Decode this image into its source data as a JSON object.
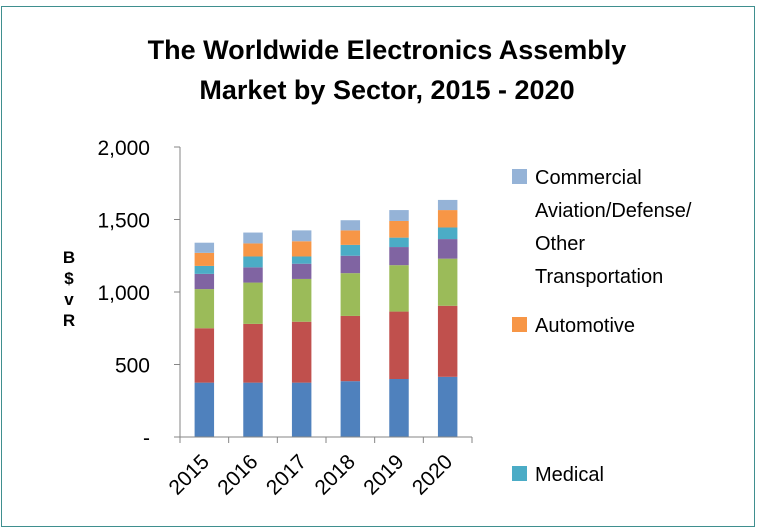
{
  "chart_data": {
    "type": "bar",
    "stacked": true,
    "title_lines": [
      "The Worldwide Electronics Assembly",
      "Market by Sector, 2015 - 2020"
    ],
    "ylabel_chars": [
      "B",
      "$",
      "v",
      "R"
    ],
    "categories": [
      "2015",
      "2016",
      "2017",
      "2018",
      "2019",
      "2020"
    ],
    "ylim": [
      0,
      2000
    ],
    "yticks": [
      0,
      500,
      1000,
      1500,
      2000
    ],
    "ytick_labels": [
      "-",
      "500",
      "1,000",
      "1,500",
      "2,000"
    ],
    "series": [
      {
        "values": [
          375,
          375,
          375,
          385,
          400,
          415
        ],
        "color": "#4f81bd"
      },
      {
        "values": [
          375,
          405,
          420,
          450,
          465,
          490
        ],
        "color": "#c0504d"
      },
      {
        "values": [
          270,
          285,
          295,
          295,
          320,
          325
        ],
        "color": "#9bbb59"
      },
      {
        "values": [
          105,
          105,
          105,
          120,
          125,
          135
        ],
        "color": "#8064a2"
      },
      {
        "values": [
          55,
          75,
          50,
          75,
          65,
          80
        ],
        "color": "#4bacc6"
      },
      {
        "name": "Automotive",
        "values": [
          90,
          90,
          105,
          100,
          115,
          120
        ],
        "color": "#f79646"
      },
      {
        "name": "Commercial Aviation/Defense/ Other Transportation",
        "values": [
          70,
          75,
          75,
          70,
          75,
          70
        ],
        "color": "#95b3d7"
      }
    ],
    "legend": [
      {
        "lines": [
          "Commercial",
          "Aviation/Defense/",
          "Other",
          "Transportation"
        ],
        "color": "#95b3d7"
      },
      {
        "lines": [
          "Automotive"
        ],
        "color": "#f79646"
      },
      {
        "lines": [
          "Medical"
        ],
        "color": "#4bacc6"
      }
    ],
    "grid": false,
    "legend_position": "right"
  }
}
